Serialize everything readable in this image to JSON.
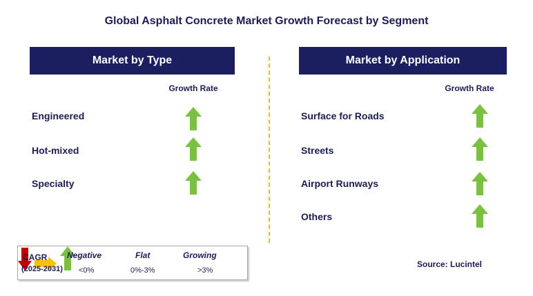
{
  "title": "Global Asphalt Concrete Market Growth Forecast by Segment",
  "left_panel": {
    "header": "Market by Type",
    "growth_label": "Growth Rate",
    "rows": [
      {
        "label": "Engineered",
        "trend": "growing"
      },
      {
        "label": "Hot-mixed",
        "trend": "growing"
      },
      {
        "label": "Specialty",
        "trend": "growing"
      }
    ]
  },
  "right_panel": {
    "header": "Market by Application",
    "growth_label": "Growth Rate",
    "rows": [
      {
        "label": "Surface for Roads",
        "trend": "growing"
      },
      {
        "label": "Streets",
        "trend": "growing"
      },
      {
        "label": "Airport Runways",
        "trend": "growing"
      },
      {
        "label": "Others",
        "trend": "growing"
      }
    ]
  },
  "legend": {
    "cagr_label": "CAGR",
    "years": "(2025-2031)",
    "negative": {
      "label": "Negative",
      "value": "<0%",
      "icon": "red-down-arrow-icon"
    },
    "flat": {
      "label": "Flat",
      "value": "0%-3%",
      "icon": "yellow-right-arrow-icon"
    },
    "growing": {
      "label": "Growing",
      "value": ">3%",
      "icon": "green-up-arrow-icon"
    }
  },
  "source": "Source: Lucintel",
  "colors": {
    "header_bg": "#1b1f5f",
    "growing": "#7ac142",
    "negative": "#c00000",
    "flat": "#ffc000",
    "divider": "#f5b800"
  }
}
